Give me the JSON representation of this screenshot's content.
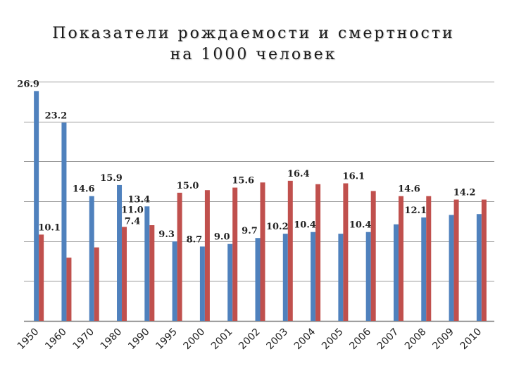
{
  "title": {
    "line1": "Показатели рождаемости и смертности",
    "line2": "на 1000 человек"
  },
  "colors": {
    "birth": "#4F81BD",
    "death": "#C0504D",
    "grid": "#7a7a7a"
  },
  "chart_data": {
    "type": "bar",
    "title": "Показатели рождаемости и смертности на 1000 человек",
    "xlabel": "",
    "ylabel": "",
    "ylim": [
      0,
      28
    ],
    "grid": true,
    "categories": [
      "1950",
      "1960",
      "1970",
      "1980",
      "1990",
      "1995",
      "2000",
      "2001",
      "2002",
      "2003",
      "2004",
      "2005",
      "2006",
      "2007",
      "2008",
      "2009",
      "2010"
    ],
    "series": [
      {
        "key": "birth",
        "values": [
          26.9,
          23.2,
          14.6,
          15.9,
          13.4,
          9.3,
          8.7,
          9.0,
          9.7,
          10.2,
          10.4,
          10.2,
          10.4,
          11.3,
          12.1,
          12.4,
          12.5
        ],
        "data_labels": [
          "26.9",
          "23.2",
          "14.6",
          "15.9",
          "13.4",
          "9.3",
          "8.7",
          "9.0",
          "9.7",
          "10.2",
          "10.4",
          "",
          "10.4",
          "",
          "12.1",
          "",
          ""
        ]
      },
      {
        "key": "death",
        "values": [
          10.1,
          7.4,
          8.6,
          11.0,
          11.2,
          15.0,
          15.3,
          15.6,
          16.2,
          16.4,
          16.0,
          16.1,
          15.2,
          14.6,
          14.6,
          14.2,
          14.2
        ],
        "data_labels": [
          "10.1",
          "",
          "",
          "11.0\n7.4",
          "",
          "15.0",
          "",
          "15.6",
          "",
          "16.4",
          "",
          "16.1",
          "",
          "14.6",
          "",
          "14.2",
          ""
        ]
      }
    ]
  }
}
